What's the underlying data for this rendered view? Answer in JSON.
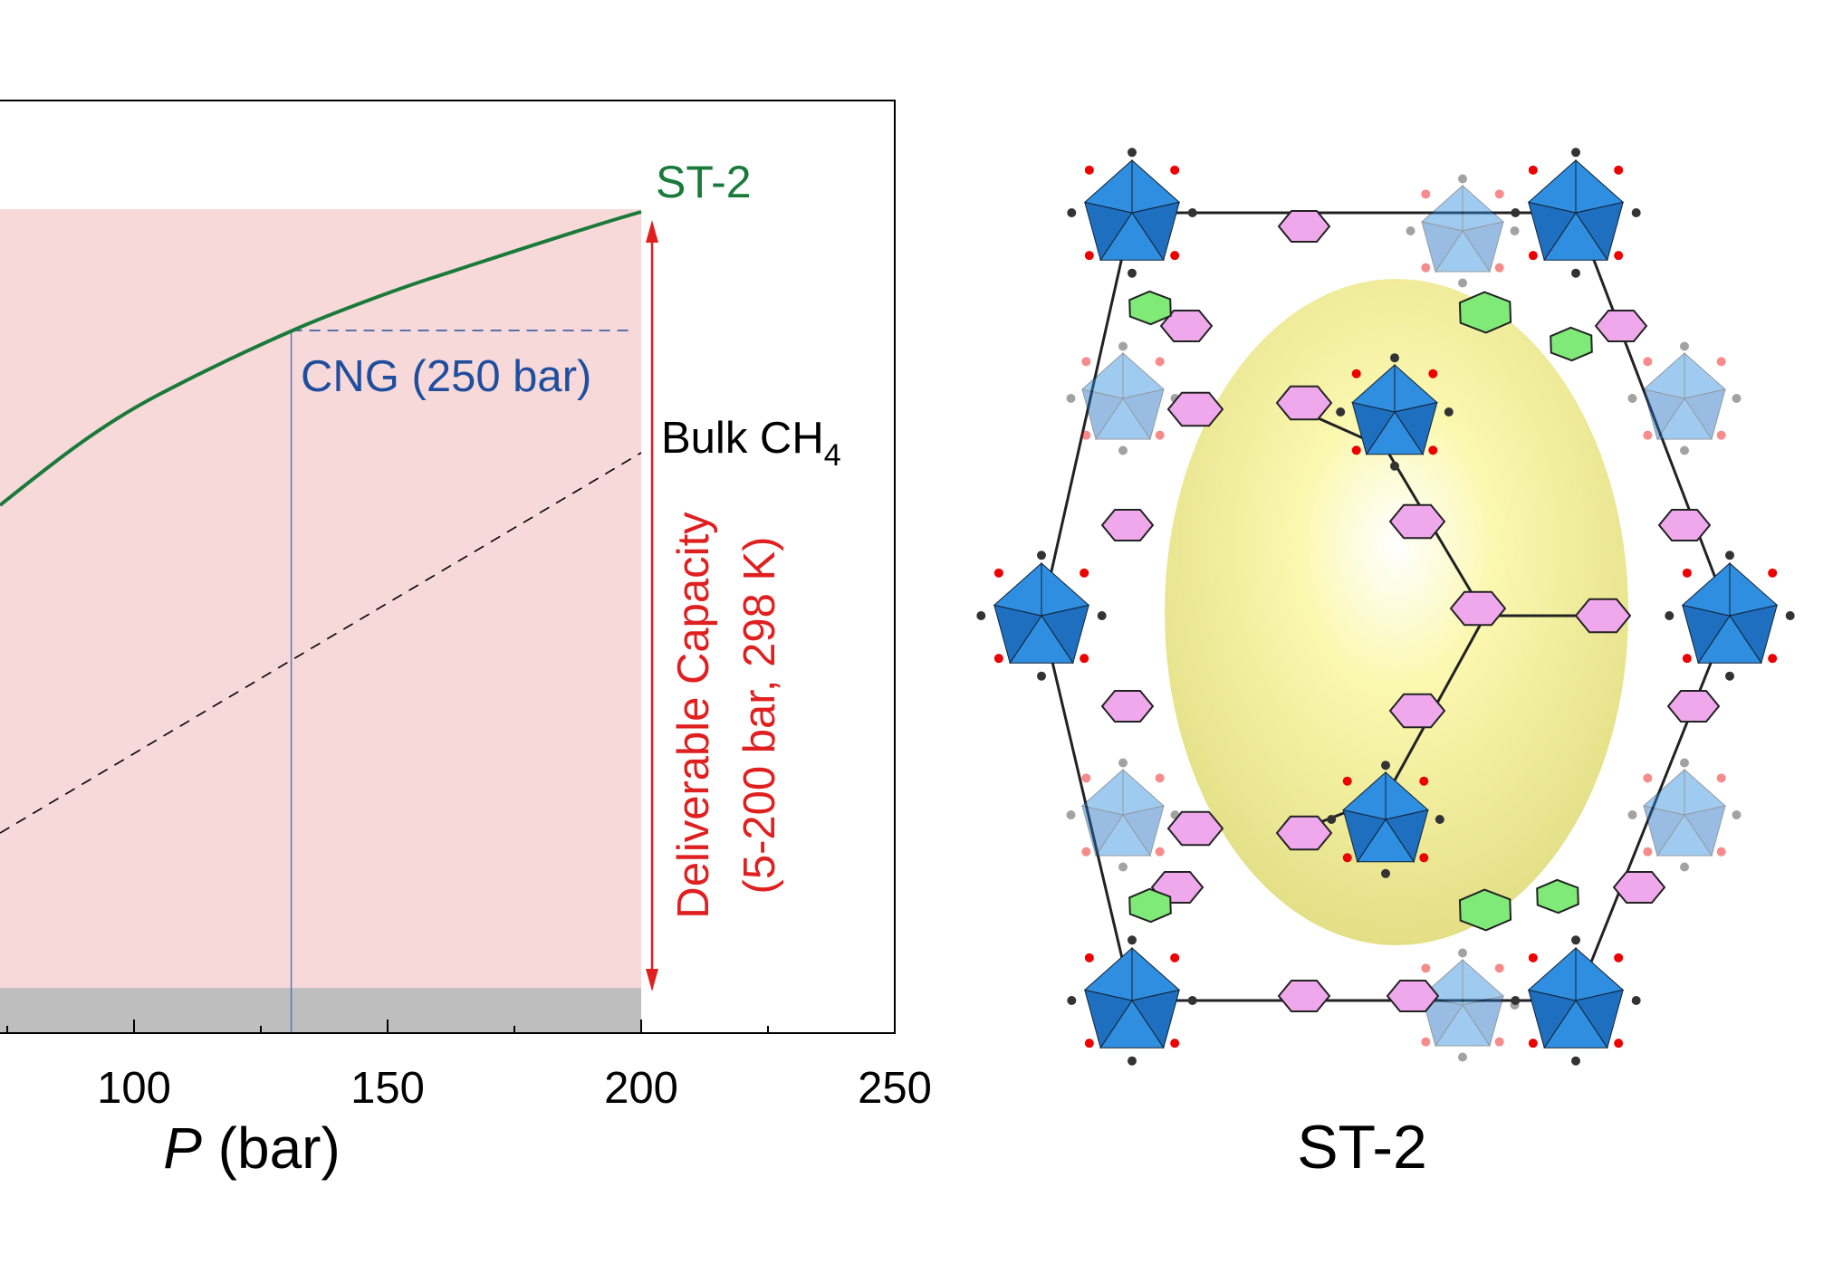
{
  "chart_data": {
    "type": "line",
    "xlabel_italic": "P",
    "xlabel_unit": "(bar)",
    "x_ticks": [
      100,
      150,
      200,
      250
    ],
    "xlim": [
      75,
      250
    ],
    "grid": false,
    "series": [
      {
        "name": "ST-2",
        "color": "#1a7a3a",
        "style": "solid"
      },
      {
        "name": "Bulk CH4",
        "color": "#000000",
        "style": "dashed"
      }
    ],
    "annotations": {
      "cng": {
        "label": "CNG (250 bar)",
        "x_bar": 131,
        "color": "#1f4e9e"
      },
      "deliverable": {
        "line1": "Deliverable Capacity",
        "line2": "(5-200 bar, 298 K)",
        "color": "#e02020",
        "range_bar": [
          5,
          200
        ]
      },
      "bulk_label": "Bulk CH",
      "bulk_sub": "4"
    },
    "shaded_region_color": "#f8d9d9",
    "baseline_band_color": "#bebebe"
  },
  "structure": {
    "label": "ST-2",
    "cavity_color": "#f7f3a0",
    "polyhedra_color": "#2f8ee0",
    "ring_color": "#f0a8ec",
    "alt_ring_color": "#80ea78"
  }
}
